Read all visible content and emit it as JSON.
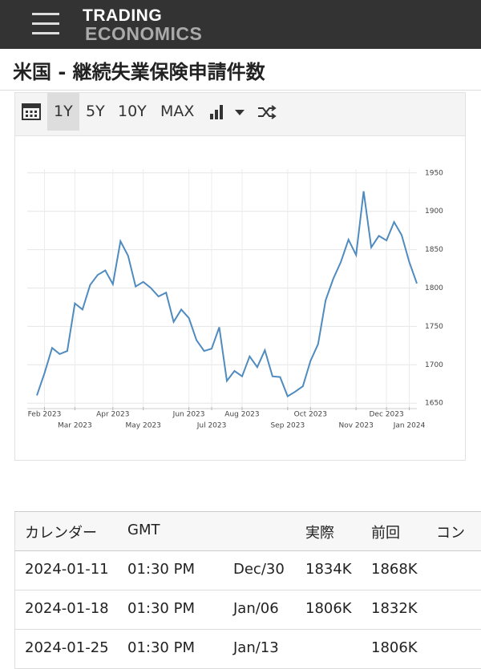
{
  "header": {
    "logo_top": "TRADING",
    "logo_bottom": "ECONOMICS",
    "title": "米国 - 継続失業保険申請件数"
  },
  "toolbar": {
    "ranges": [
      "1Y",
      "5Y",
      "10Y",
      "MAX"
    ]
  },
  "chart_data": {
    "type": "line",
    "color": "#4f8bbf",
    "grid": true,
    "categories": [
      null,
      "Feb 2023",
      null,
      null,
      null,
      "Mar 2023",
      null,
      null,
      null,
      null,
      "Apr 2023",
      null,
      null,
      null,
      "May 2023",
      null,
      null,
      null,
      null,
      null,
      "Jun 2023",
      null,
      null,
      "Jul 2023",
      null,
      null,
      null,
      "Aug 2023",
      null,
      null,
      null,
      null,
      null,
      "Sep 2023",
      null,
      null,
      "Oct 2023",
      null,
      null,
      null,
      null,
      null,
      "Nov 2023",
      null,
      null,
      null,
      "Dec 2023",
      null,
      null,
      "Jan 2024",
      null
    ],
    "values": [
      1660,
      1689,
      1722,
      1714,
      1718,
      1780,
      1772,
      1804,
      1817,
      1823,
      1805,
      1861,
      1842,
      1802,
      1808,
      1800,
      1789,
      1794,
      1756,
      1772,
      1761,
      1732,
      1718,
      1721,
      1749,
      1679,
      1692,
      1685,
      1711,
      1697,
      1719,
      1685,
      1684,
      1659,
      1665,
      1672,
      1705,
      1727,
      1784,
      1812,
      1834,
      1863,
      1843,
      1926,
      1853,
      1868,
      1862,
      1886,
      1869,
      1834,
      1806
    ],
    "ylim": [
      1645,
      1955
    ],
    "yticks": [
      1650,
      1700,
      1750,
      1800,
      1850,
      1900,
      1950
    ]
  },
  "table": {
    "columns": [
      "カレンダー",
      "GMT",
      null,
      "実際",
      "前回",
      "コン"
    ],
    "rows": [
      [
        "2024-01-11",
        "01:30 PM",
        "Dec/30",
        "1834K",
        "1868K",
        null
      ],
      [
        "2024-01-18",
        "01:30 PM",
        "Jan/06",
        "1806K",
        "1832K",
        null
      ],
      [
        "2024-01-25",
        "01:30 PM",
        "Jan/13",
        null,
        "1806K",
        null
      ]
    ]
  }
}
